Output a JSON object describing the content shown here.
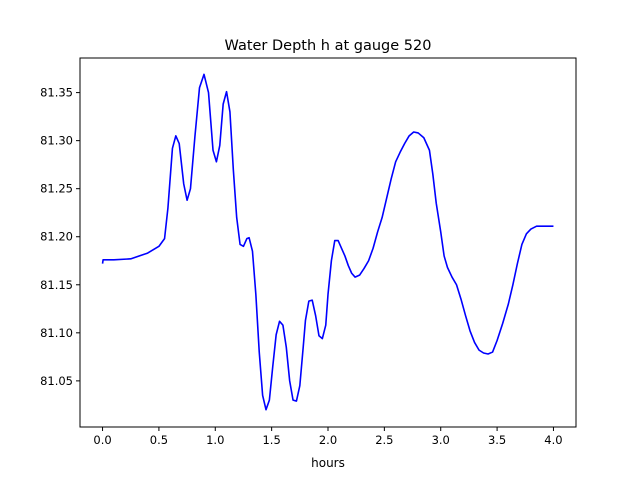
{
  "chart_data": {
    "type": "line",
    "title": "Water Depth h at gauge 520",
    "xlabel": "hours",
    "ylabel": "",
    "xlim": [
      -0.2,
      4.2
    ],
    "ylim": [
      81.002,
      81.386
    ],
    "xticks": [
      0.0,
      0.5,
      1.0,
      1.5,
      2.0,
      2.5,
      3.0,
      3.5,
      4.0
    ],
    "xtick_labels": [
      "0.0",
      "0.5",
      "1.0",
      "1.5",
      "2.0",
      "2.5",
      "3.0",
      "3.5",
      "4.0"
    ],
    "yticks": [
      81.05,
      81.1,
      81.15,
      81.2,
      81.25,
      81.3,
      81.35
    ],
    "ytick_labels": [
      "81.05",
      "81.10",
      "81.15",
      "81.20",
      "81.25",
      "81.30",
      "81.35"
    ],
    "grid": false,
    "legend": "none",
    "line_color": "#0000ff",
    "series": [
      {
        "x": [
          0.0,
          0.005,
          0.1,
          0.25,
          0.4,
          0.5,
          0.55,
          0.58,
          0.62,
          0.65,
          0.68,
          0.72,
          0.75,
          0.78,
          0.82,
          0.86,
          0.9,
          0.94,
          0.98,
          1.01,
          1.04,
          1.07,
          1.1,
          1.13,
          1.16,
          1.19,
          1.22,
          1.25,
          1.28,
          1.3,
          1.33,
          1.36,
          1.39,
          1.42,
          1.45,
          1.48,
          1.51,
          1.54,
          1.57,
          1.6,
          1.63,
          1.66,
          1.69,
          1.72,
          1.75,
          1.78,
          1.8,
          1.83,
          1.86,
          1.89,
          1.92,
          1.95,
          1.98,
          2.0,
          2.03,
          2.06,
          2.09,
          2.12,
          2.15,
          2.18,
          2.21,
          2.24,
          2.28,
          2.32,
          2.36,
          2.4,
          2.44,
          2.48,
          2.52,
          2.56,
          2.6,
          2.64,
          2.68,
          2.72,
          2.76,
          2.8,
          2.85,
          2.9,
          2.93,
          2.96,
          3.0,
          3.03,
          3.06,
          3.1,
          3.14,
          3.18,
          3.22,
          3.26,
          3.3,
          3.34,
          3.38,
          3.42,
          3.46,
          3.5,
          3.55,
          3.6,
          3.64,
          3.68,
          3.72,
          3.76,
          3.8,
          3.85,
          3.9,
          3.95,
          4.0
        ],
        "values": [
          81.172,
          81.176,
          81.176,
          81.177,
          81.183,
          81.19,
          81.198,
          81.23,
          81.292,
          81.305,
          81.297,
          81.255,
          81.238,
          81.25,
          81.305,
          81.355,
          81.369,
          81.35,
          81.29,
          81.278,
          81.295,
          81.338,
          81.351,
          81.33,
          81.27,
          81.22,
          81.192,
          81.19,
          81.198,
          81.199,
          81.185,
          81.14,
          81.08,
          81.035,
          81.02,
          81.03,
          81.065,
          81.098,
          81.112,
          81.108,
          81.085,
          81.05,
          81.03,
          81.029,
          81.045,
          81.085,
          81.113,
          81.133,
          81.134,
          81.118,
          81.097,
          81.094,
          81.108,
          81.14,
          81.175,
          81.196,
          81.196,
          81.188,
          81.18,
          81.17,
          81.162,
          81.158,
          81.16,
          81.167,
          81.175,
          81.188,
          81.205,
          81.22,
          81.24,
          81.26,
          81.278,
          81.288,
          81.297,
          81.305,
          81.309,
          81.308,
          81.303,
          81.29,
          81.265,
          81.235,
          81.205,
          81.18,
          81.168,
          81.158,
          81.15,
          81.135,
          81.118,
          81.102,
          81.09,
          81.082,
          81.079,
          81.078,
          81.08,
          81.092,
          81.11,
          81.13,
          81.15,
          81.172,
          81.192,
          81.203,
          81.208,
          81.211,
          81.211,
          81.211,
          81.211
        ]
      }
    ]
  }
}
